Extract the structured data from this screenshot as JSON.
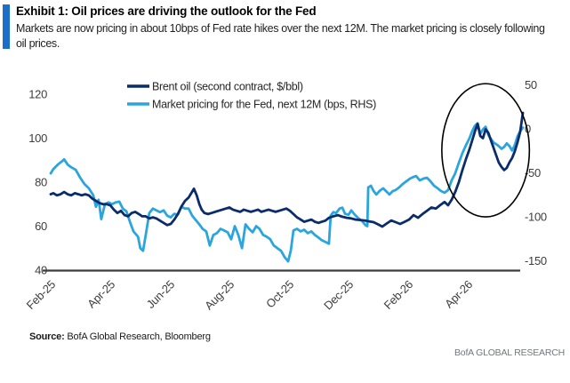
{
  "header": {
    "exhibit_title": "Exhibit 1: Oil prices are driving the outlook for the Fed",
    "subtitle": "Markets are now pricing in about 10bps of Fed rate hikes over the next 12M. The market pricing is closely following oil prices.",
    "accent_bar_color": "#1b6fc8"
  },
  "chart_data": {
    "type": "line",
    "x_unit": "months since Feb-2025",
    "x_tick_labels": [
      "Feb-25",
      "Apr-25",
      "Jun-25",
      "Aug-25",
      "Oct-25",
      "Dec-25",
      "Feb-26",
      "Apr-26"
    ],
    "x_tick_positions": [
      0,
      2,
      4,
      6,
      8,
      10,
      12,
      14
    ],
    "left_axis": {
      "min": 40,
      "max": 120,
      "ticks": [
        120,
        100,
        80,
        60,
        40
      ]
    },
    "right_axis": {
      "min": -150,
      "max": 50,
      "ticks": [
        50,
        0,
        -50,
        -100,
        -150
      ]
    },
    "grid": false,
    "legend_position": "top-center",
    "axis_text_color": "#3d3d3d",
    "series": [
      {
        "name": "Brent oil (second contract, $/bbl)",
        "axis": "left",
        "color": "#0b2c6b",
        "points": [
          [
            0,
            74.5
          ],
          [
            0.09,
            75
          ],
          [
            0.21,
            74
          ],
          [
            0.33,
            74.5
          ],
          [
            0.45,
            75.5
          ],
          [
            0.57,
            74.5
          ],
          [
            0.69,
            74
          ],
          [
            0.81,
            75
          ],
          [
            0.93,
            74.5
          ],
          [
            1.04,
            74
          ],
          [
            1.16,
            74.5
          ],
          [
            1.28,
            74
          ],
          [
            1.4,
            72.5
          ],
          [
            1.52,
            71.5
          ],
          [
            1.64,
            70.5
          ],
          [
            1.76,
            70
          ],
          [
            1.88,
            70
          ],
          [
            2,
            69.5
          ],
          [
            2.12,
            67.5
          ],
          [
            2.24,
            66
          ],
          [
            2.36,
            67
          ],
          [
            2.48,
            65
          ],
          [
            2.6,
            64.5
          ],
          [
            2.72,
            66
          ],
          [
            2.84,
            66.5
          ],
          [
            2.96,
            65.5
          ],
          [
            3.07,
            64.5
          ],
          [
            3.19,
            64.5
          ],
          [
            3.31,
            63.5
          ],
          [
            3.43,
            64
          ],
          [
            3.55,
            63.5
          ],
          [
            3.67,
            62.5
          ],
          [
            3.79,
            61.5
          ],
          [
            3.91,
            60.5
          ],
          [
            4.03,
            61
          ],
          [
            4.15,
            63
          ],
          [
            4.27,
            65.5
          ],
          [
            4.39,
            69
          ],
          [
            4.51,
            71.5
          ],
          [
            4.63,
            73
          ],
          [
            4.72,
            75
          ],
          [
            4.81,
            77
          ],
          [
            4.9,
            74
          ],
          [
            4.99,
            70
          ],
          [
            5.07,
            67.5
          ],
          [
            5.16,
            66
          ],
          [
            5.28,
            65.5
          ],
          [
            5.4,
            66
          ],
          [
            5.52,
            66.5
          ],
          [
            5.64,
            67
          ],
          [
            5.76,
            67.5
          ],
          [
            5.88,
            68
          ],
          [
            6,
            68.5
          ],
          [
            6.12,
            67.5
          ],
          [
            6.24,
            67
          ],
          [
            6.36,
            66.5
          ],
          [
            6.48,
            67.5
          ],
          [
            6.6,
            67
          ],
          [
            6.72,
            66.5
          ],
          [
            6.84,
            67
          ],
          [
            6.96,
            67.5
          ],
          [
            7.07,
            66.5
          ],
          [
            7.19,
            67
          ],
          [
            7.31,
            67.5
          ],
          [
            7.43,
            67
          ],
          [
            7.55,
            66.5
          ],
          [
            7.67,
            67
          ],
          [
            7.79,
            67.5
          ],
          [
            7.91,
            68
          ],
          [
            8.03,
            67
          ],
          [
            8.15,
            65.5
          ],
          [
            8.27,
            64
          ],
          [
            8.39,
            63
          ],
          [
            8.51,
            62
          ],
          [
            8.63,
            62.5
          ],
          [
            8.75,
            63
          ],
          [
            8.87,
            62
          ],
          [
            8.99,
            61.5
          ],
          [
            9.1,
            62
          ],
          [
            9.22,
            62.5
          ],
          [
            9.34,
            63.8
          ],
          [
            9.49,
            64.5
          ],
          [
            9.64,
            65
          ],
          [
            9.79,
            64.3
          ],
          [
            9.94,
            63.8
          ],
          [
            10.09,
            63.5
          ],
          [
            10.24,
            63
          ],
          [
            10.39,
            62.8
          ],
          [
            10.54,
            62.6
          ],
          [
            10.69,
            62.2
          ],
          [
            10.84,
            61.8
          ],
          [
            10.99,
            60.8
          ],
          [
            11.13,
            59.8
          ],
          [
            11.28,
            61.2
          ],
          [
            11.43,
            62.6
          ],
          [
            11.58,
            61.8
          ],
          [
            11.73,
            61
          ],
          [
            11.88,
            62
          ],
          [
            12.03,
            63
          ],
          [
            12.18,
            65
          ],
          [
            12.33,
            63.8
          ],
          [
            12.48,
            65.5
          ],
          [
            12.63,
            67
          ],
          [
            12.78,
            68.5
          ],
          [
            12.93,
            68
          ],
          [
            13.07,
            69.5
          ],
          [
            13.22,
            71
          ],
          [
            13.34,
            69.5
          ],
          [
            13.46,
            72
          ],
          [
            13.58,
            75.5
          ],
          [
            13.7,
            80
          ],
          [
            13.82,
            85.5
          ],
          [
            13.94,
            90.5
          ],
          [
            14.06,
            95
          ],
          [
            14.15,
            99
          ],
          [
            14.24,
            103
          ],
          [
            14.33,
            106.5
          ],
          [
            14.42,
            101
          ],
          [
            14.51,
            100
          ],
          [
            14.6,
            104
          ],
          [
            14.69,
            102.5
          ],
          [
            14.78,
            99
          ],
          [
            14.87,
            95.5
          ],
          [
            14.96,
            92
          ],
          [
            15.04,
            89
          ],
          [
            15.13,
            87
          ],
          [
            15.22,
            85.5
          ],
          [
            15.31,
            86.5
          ],
          [
            15.4,
            89
          ],
          [
            15.49,
            91
          ],
          [
            15.58,
            94
          ],
          [
            15.67,
            98
          ],
          [
            15.76,
            103
          ],
          [
            15.85,
            111.5
          ]
        ]
      },
      {
        "name": "Market pricing for the Fed, next 12M (bps, RHS)",
        "axis": "right",
        "color": "#2aa5de",
        "points": [
          [
            0,
            -40
          ],
          [
            0.09,
            -35
          ],
          [
            0.24,
            -30
          ],
          [
            0.39,
            -26
          ],
          [
            0.45,
            -24
          ],
          [
            0.57,
            -30
          ],
          [
            0.69,
            -33
          ],
          [
            0.84,
            -36
          ],
          [
            0.99,
            -45
          ],
          [
            1.13,
            -52
          ],
          [
            1.28,
            -57
          ],
          [
            1.43,
            -65
          ],
          [
            1.52,
            -78
          ],
          [
            1.61,
            -70
          ],
          [
            1.7,
            -92
          ],
          [
            1.82,
            -75
          ],
          [
            1.94,
            -73
          ],
          [
            2.06,
            -75
          ],
          [
            2.18,
            -73
          ],
          [
            2.3,
            -72
          ],
          [
            2.42,
            -80
          ],
          [
            2.54,
            -83
          ],
          [
            2.66,
            -95
          ],
          [
            2.78,
            -106
          ],
          [
            2.93,
            -112
          ],
          [
            3.01,
            -125
          ],
          [
            3.1,
            -128
          ],
          [
            3.19,
            -110
          ],
          [
            3.31,
            -85
          ],
          [
            3.43,
            -80
          ],
          [
            3.55,
            -82
          ],
          [
            3.67,
            -84
          ],
          [
            3.79,
            -82
          ],
          [
            3.91,
            -88
          ],
          [
            4.03,
            -90
          ],
          [
            4.15,
            -86
          ],
          [
            4.27,
            -87
          ],
          [
            4.39,
            -78
          ],
          [
            4.51,
            -80
          ],
          [
            4.63,
            -80
          ],
          [
            4.75,
            -88
          ],
          [
            4.87,
            -93
          ],
          [
            4.99,
            -98
          ],
          [
            5.1,
            -103
          ],
          [
            5.22,
            -106
          ],
          [
            5.34,
            -122
          ],
          [
            5.46,
            -110
          ],
          [
            5.58,
            -108
          ],
          [
            5.7,
            -103
          ],
          [
            5.82,
            -105
          ],
          [
            5.94,
            -107
          ],
          [
            6.06,
            -115
          ],
          [
            6.18,
            -100
          ],
          [
            6.3,
            -110
          ],
          [
            6.42,
            -125
          ],
          [
            6.54,
            -98
          ],
          [
            6.66,
            -103
          ],
          [
            6.78,
            -107
          ],
          [
            6.9,
            -100
          ],
          [
            7.01,
            -103
          ],
          [
            7.13,
            -110
          ],
          [
            7.25,
            -112
          ],
          [
            7.37,
            -115
          ],
          [
            7.49,
            -122
          ],
          [
            7.61,
            -125
          ],
          [
            7.73,
            -128
          ],
          [
            7.85,
            -135
          ],
          [
            7.97,
            -140
          ],
          [
            8.06,
            -128
          ],
          [
            8.15,
            -105
          ],
          [
            8.27,
            -103
          ],
          [
            8.39,
            -106
          ],
          [
            8.51,
            -104
          ],
          [
            8.63,
            -108
          ],
          [
            8.75,
            -106
          ],
          [
            8.87,
            -110
          ],
          [
            8.99,
            -113
          ],
          [
            9.1,
            -116
          ],
          [
            9.22,
            -118
          ],
          [
            9.34,
            -120
          ],
          [
            9.4,
            -88
          ],
          [
            9.49,
            -84
          ],
          [
            9.58,
            -85
          ],
          [
            9.7,
            -80
          ],
          [
            9.79,
            -79
          ],
          [
            9.88,
            -86
          ],
          [
            10,
            -87
          ],
          [
            10.09,
            -82
          ],
          [
            10.21,
            -87
          ],
          [
            10.33,
            -91
          ],
          [
            10.45,
            -94
          ],
          [
            10.57,
            -99
          ],
          [
            10.63,
            -100
          ],
          [
            10.66,
            -56
          ],
          [
            10.75,
            -54
          ],
          [
            10.84,
            -60
          ],
          [
            10.93,
            -64
          ],
          [
            11.04,
            -60
          ],
          [
            11.16,
            -57
          ],
          [
            11.28,
            -61
          ],
          [
            11.37,
            -64
          ],
          [
            11.49,
            -60
          ],
          [
            11.58,
            -59
          ],
          [
            11.7,
            -56
          ],
          [
            11.82,
            -52
          ],
          [
            11.94,
            -49
          ],
          [
            12.06,
            -46
          ],
          [
            12.18,
            -44
          ],
          [
            12.27,
            -43
          ],
          [
            12.39,
            -48
          ],
          [
            12.51,
            -46
          ],
          [
            12.63,
            -45
          ],
          [
            12.75,
            -49
          ],
          [
            12.87,
            -54
          ],
          [
            12.99,
            -57
          ],
          [
            13.1,
            -60
          ],
          [
            13.22,
            -62
          ],
          [
            13.34,
            -59
          ],
          [
            13.46,
            -48
          ],
          [
            13.58,
            -40
          ],
          [
            13.7,
            -28
          ],
          [
            13.82,
            -17
          ],
          [
            13.94,
            -8
          ],
          [
            14.06,
            0
          ],
          [
            14.15,
            8
          ],
          [
            14.24,
            14
          ],
          [
            14.33,
            17
          ],
          [
            14.42,
            5
          ],
          [
            14.51,
            10
          ],
          [
            14.6,
            13
          ],
          [
            14.69,
            4
          ],
          [
            14.78,
            -1
          ],
          [
            14.87,
            -5
          ],
          [
            14.96,
            -7
          ],
          [
            15.04,
            -9
          ],
          [
            15.13,
            -12
          ],
          [
            15.22,
            -10
          ],
          [
            15.31,
            -6
          ],
          [
            15.4,
            -9
          ],
          [
            15.49,
            -14
          ],
          [
            15.58,
            -8
          ],
          [
            15.67,
            2
          ],
          [
            15.76,
            8
          ],
          [
            15.85,
            12
          ]
        ]
      }
    ],
    "annotation": {
      "shape": "ellipse",
      "purpose": "highlights recent co-movement of oil and Fed pricing",
      "x_center_month": 14.6,
      "x_radius_months": 1.47,
      "y_center_left_axis": 94.5,
      "y_radius_left_axis": 30.3,
      "color": "#000000"
    }
  },
  "footer": {
    "source_label": "Source:",
    "source_text": " BofA Global Research, Bloomberg",
    "brand": "BofA GLOBAL RESEARCH"
  }
}
